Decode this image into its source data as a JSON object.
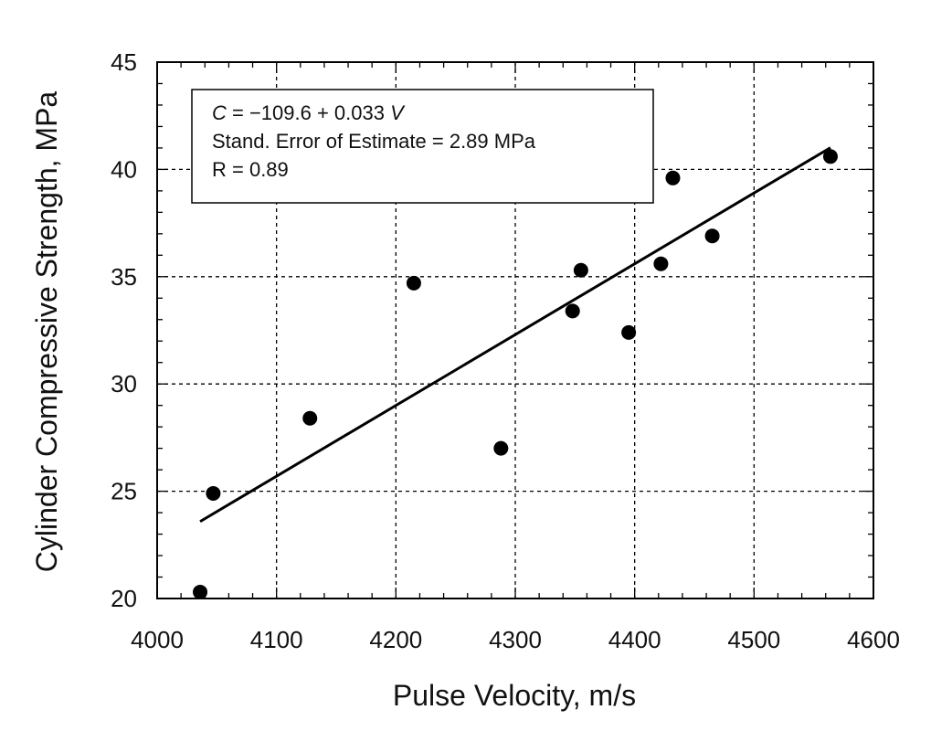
{
  "chart_data": {
    "type": "scatter",
    "xlabel": "Pulse Velocity, m/s",
    "ylabel": "Cylinder Compressive Strength, MPa",
    "xlim": [
      4000,
      4600
    ],
    "ylim": [
      20,
      45
    ],
    "xticks": [
      4000,
      4100,
      4200,
      4300,
      4400,
      4500,
      4600
    ],
    "yticks": [
      20,
      25,
      30,
      35,
      40,
      45
    ],
    "grid": true,
    "grid_style": "dashed",
    "points": [
      {
        "x": 4036,
        "y": 20.3
      },
      {
        "x": 4047,
        "y": 24.9
      },
      {
        "x": 4128,
        "y": 28.4
      },
      {
        "x": 4215,
        "y": 34.7
      },
      {
        "x": 4288,
        "y": 27.0
      },
      {
        "x": 4348,
        "y": 33.4
      },
      {
        "x": 4355,
        "y": 35.3
      },
      {
        "x": 4395,
        "y": 32.4
      },
      {
        "x": 4422,
        "y": 35.6
      },
      {
        "x": 4432,
        "y": 39.6
      },
      {
        "x": 4465,
        "y": 36.9
      },
      {
        "x": 4564,
        "y": 40.6
      }
    ],
    "fit_line": {
      "intercept": -109.6,
      "slope": 0.033,
      "x_range": [
        4036,
        4564
      ]
    },
    "annotation": {
      "line1": {
        "var": "C",
        "eq": " = −109.6 + 0.033 ",
        "var2": "V"
      },
      "line2": "Stand. Error of Estimate = 2.89 MPa",
      "line3": "R = 0.89"
    },
    "colors": {
      "marker": "#000000",
      "line": "#000000",
      "grid": "#000000"
    }
  }
}
